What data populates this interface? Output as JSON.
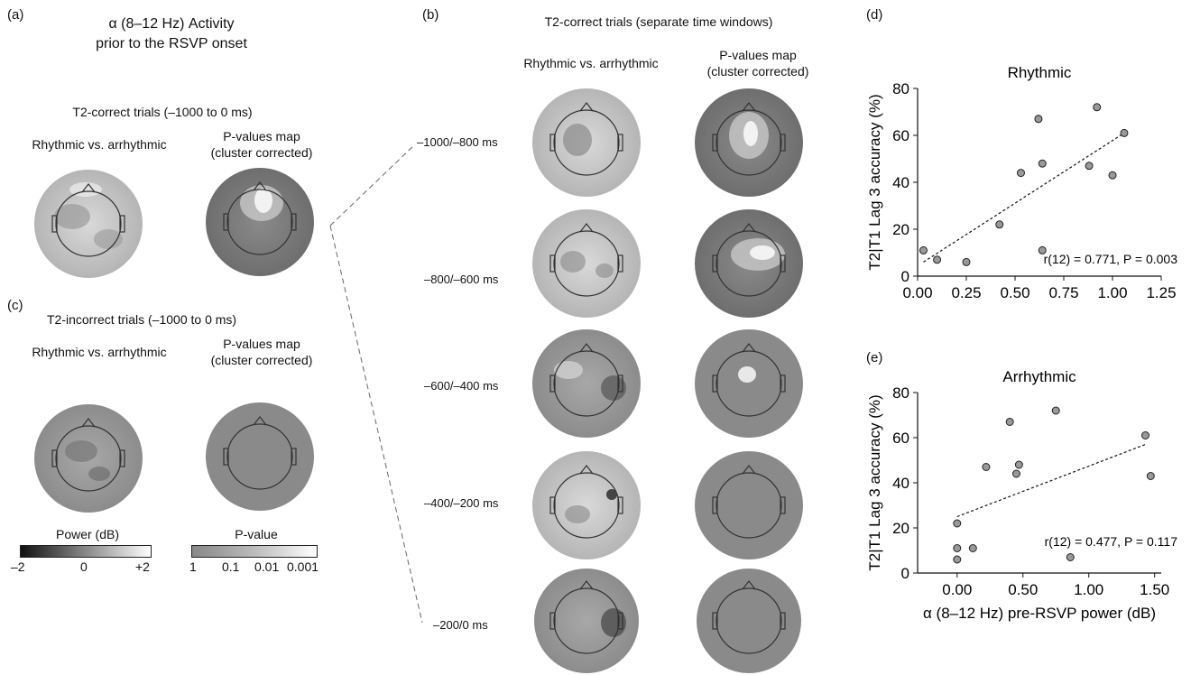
{
  "panels": {
    "a": {
      "label": "(a)",
      "title_line1": "α (8–12 Hz) Activity",
      "title_line2": "prior to the RSVP onset",
      "subtitle": "T2-correct trials (–1000 to 0 ms)",
      "col1": "Rhythmic vs. arrhythmic",
      "col2_line1": "P-values map",
      "col2_line2": "(cluster corrected)"
    },
    "b": {
      "label": "(b)",
      "title": "T2-correct trials (separate time windows)",
      "col1": "Rhythmic vs. arrhythmic",
      "col2_line1": "P-values map",
      "col2_line2": "(cluster corrected)",
      "windows": [
        "–1000/–800 ms",
        "–800/–600 ms",
        "–600/–400 ms",
        "–400/–200 ms",
        "–200/0 ms"
      ]
    },
    "c": {
      "label": "(c)",
      "subtitle": "T2-incorrect trials (–1000 to 0 ms)",
      "col1": "Rhythmic vs. arrhythmic",
      "col2_line1": "P-values map",
      "col2_line2": "(cluster corrected)"
    },
    "d": {
      "label": "(d)"
    },
    "e": {
      "label": "(e)"
    }
  },
  "colorbars": {
    "power": {
      "title": "Power (dB)",
      "ticks": [
        "–2",
        "0",
        "+2"
      ]
    },
    "pvalue": {
      "title": "P-value",
      "ticks": [
        "1",
        "0.1",
        "0.01",
        "0.001"
      ]
    }
  },
  "chart_data": [
    {
      "type": "scatter",
      "title": "Rhythmic",
      "ylabel": "T2|T1 Lag 3 accuracy (%)",
      "xlabel": "",
      "xlim": [
        0,
        1.25
      ],
      "ylim": [
        0,
        80
      ],
      "xticks": [
        "0.00",
        "0.25",
        "0.50",
        "0.75",
        "1.00",
        "1.25"
      ],
      "yticks": [
        "0",
        "20",
        "40",
        "60",
        "80"
      ],
      "points": [
        {
          "x": 0.03,
          "y": 11
        },
        {
          "x": 0.1,
          "y": 7
        },
        {
          "x": 0.25,
          "y": 6
        },
        {
          "x": 0.42,
          "y": 22
        },
        {
          "x": 0.53,
          "y": 44
        },
        {
          "x": 0.62,
          "y": 67
        },
        {
          "x": 0.64,
          "y": 48
        },
        {
          "x": 0.64,
          "y": 11
        },
        {
          "x": 0.88,
          "y": 47
        },
        {
          "x": 0.92,
          "y": 72
        },
        {
          "x": 1.0,
          "y": 43
        },
        {
          "x": 1.06,
          "y": 61
        }
      ],
      "fit": [
        [
          0.03,
          6
        ],
        [
          1.06,
          61
        ]
      ],
      "annotation": "r(12) = 0.771, P = 0.003",
      "grid": false
    },
    {
      "type": "scatter",
      "title": "Arrhythmic",
      "ylabel": "T2|T1 Lag 3 accuracy (%)",
      "xlabel": "α (8–12 Hz) pre-RSVP power (dB)",
      "xlim": [
        -0.3,
        1.55
      ],
      "ylim": [
        0,
        80
      ],
      "xticks": [
        "0.00",
        "0.50",
        "1.00",
        "1.50"
      ],
      "yticks": [
        "0",
        "20",
        "40",
        "60",
        "80"
      ],
      "points": [
        {
          "x": 0.0,
          "y": 6
        },
        {
          "x": 0.0,
          "y": 11
        },
        {
          "x": 0.0,
          "y": 22
        },
        {
          "x": 0.12,
          "y": 11
        },
        {
          "x": 0.22,
          "y": 47
        },
        {
          "x": 0.4,
          "y": 67
        },
        {
          "x": 0.45,
          "y": 44
        },
        {
          "x": 0.47,
          "y": 48
        },
        {
          "x": 0.75,
          "y": 72
        },
        {
          "x": 0.86,
          "y": 7
        },
        {
          "x": 1.43,
          "y": 61
        },
        {
          "x": 1.47,
          "y": 43
        }
      ],
      "fit": [
        [
          0.0,
          25
        ],
        [
          1.43,
          57
        ]
      ],
      "annotation": "r(12) = 0.477, P = 0.117",
      "grid": false
    }
  ]
}
